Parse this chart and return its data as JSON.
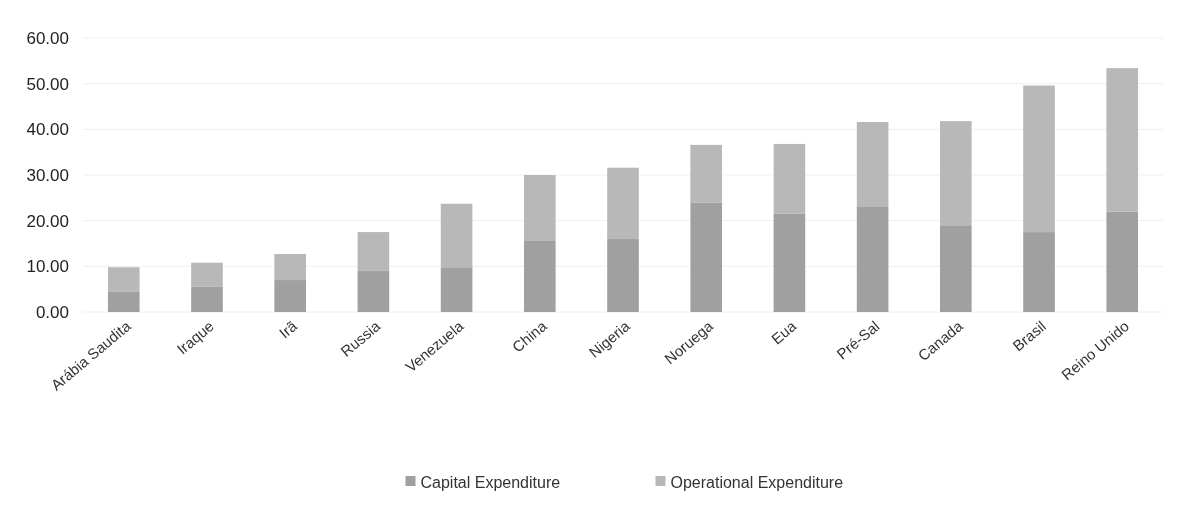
{
  "chart_data": {
    "type": "bar",
    "stacked": true,
    "categories": [
      "Arábia Saudita",
      "Iraque",
      "Irã",
      "Russia",
      "Venezuela",
      "China",
      "Nigeria",
      "Noruega",
      "Eua",
      "Pré-Sal",
      "Canada",
      "Brasil",
      "Reino Unido"
    ],
    "series": [
      {
        "name": "Capital Expenditure",
        "color": "#a0a0a0",
        "values": [
          4.4,
          5.5,
          7,
          9,
          9.8,
          15.7,
          16,
          24,
          21.5,
          23,
          19,
          17.5,
          22
        ]
      },
      {
        "name": "Operational Expenditure",
        "color": "#b8b8b8",
        "values": [
          5.4,
          5.3,
          5.7,
          8.5,
          13.9,
          14.3,
          15.6,
          12.6,
          15.3,
          18.6,
          22.8,
          32.1,
          31.4
        ]
      }
    ],
    "ylim": [
      0,
      60
    ],
    "yticks": [
      {
        "value": 0,
        "label": "0.00"
      },
      {
        "value": 10,
        "label": "10.00"
      },
      {
        "value": 20,
        "label": "20.00"
      },
      {
        "value": 30,
        "label": "30.00"
      },
      {
        "value": 40,
        "label": "40.00"
      },
      {
        "value": 50,
        "label": "50.00"
      },
      {
        "value": 60,
        "label": "60.00"
      }
    ],
    "grid": "y",
    "legend": "bottom"
  }
}
